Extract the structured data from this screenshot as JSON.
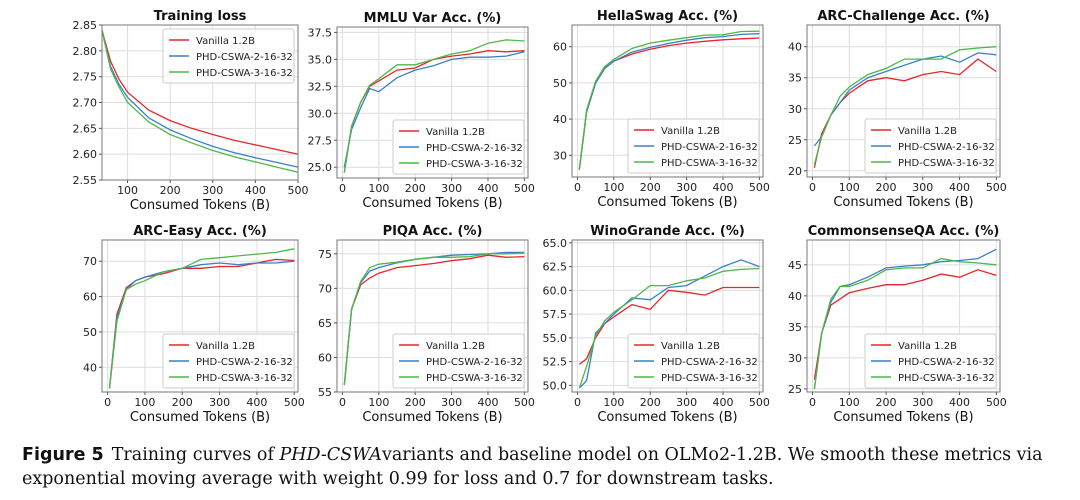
{
  "colors": {
    "Vanilla 1.2B": "#e8262a",
    "PHD-CSWA-2-16-32": "#3a80c8",
    "PHD-CSWA-3-16-32": "#4cb848"
  },
  "caption": {
    "label": "Figure 5",
    "pre": "Training curves of ",
    "italic": "PHD-CSWA",
    "post": "variants and baseline model on OLMo2-1.2B. We smooth these metrics via exponential moving average with weight 0.99 for loss and 0.7 for downstream tasks."
  },
  "chart_data": [
    {
      "type": "line",
      "title": "Training loss",
      "xlabel": "Consumed Tokens (B)",
      "xlim": [
        40,
        500
      ],
      "ylim": [
        2.55,
        2.85
      ],
      "xticks": [
        100,
        200,
        300,
        400,
        500
      ],
      "yticks": [
        2.55,
        2.6,
        2.65,
        2.7,
        2.75,
        2.8,
        2.85
      ],
      "ytick_labels": [
        "2.55",
        "2.60",
        "2.65",
        "2.70",
        "2.75",
        "2.80",
        "2.85"
      ],
      "legend": "top-right",
      "grid": true,
      "x": [
        40,
        60,
        80,
        100,
        150,
        200,
        250,
        300,
        350,
        400,
        450,
        500
      ],
      "series": [
        {
          "name": "Vanilla 1.2B",
          "values": [
            2.84,
            2.78,
            2.745,
            2.72,
            2.685,
            2.665,
            2.65,
            2.638,
            2.627,
            2.618,
            2.609,
            2.6
          ]
        },
        {
          "name": "PHD-CSWA-2-16-32",
          "values": [
            2.84,
            2.77,
            2.735,
            2.71,
            2.67,
            2.647,
            2.63,
            2.615,
            2.603,
            2.593,
            2.584,
            2.575
          ]
        },
        {
          "name": "PHD-CSWA-3-16-32",
          "values": [
            2.84,
            2.765,
            2.73,
            2.7,
            2.662,
            2.638,
            2.622,
            2.607,
            2.595,
            2.585,
            2.575,
            2.565
          ]
        }
      ]
    },
    {
      "type": "line",
      "title": "MMLU Var Acc. (%)",
      "xlabel": "Consumed Tokens (B)",
      "xlim": [
        -15,
        510
      ],
      "ylim": [
        24,
        38
      ],
      "xticks": [
        0,
        100,
        200,
        300,
        400,
        500
      ],
      "yticks": [
        25,
        27.5,
        30,
        32.5,
        35,
        37.5
      ],
      "ytick_labels": [
        "25.0",
        "27.5",
        "30.0",
        "32.5",
        "35.0",
        "37.5"
      ],
      "legend": "bottom-right",
      "grid": true,
      "x": [
        5,
        25,
        50,
        75,
        100,
        150,
        200,
        250,
        300,
        350,
        400,
        450,
        500
      ],
      "series": [
        {
          "name": "Vanilla 1.2B",
          "values": [
            24.5,
            28.8,
            31,
            32.5,
            33,
            34,
            34.2,
            35,
            35.3,
            35.5,
            35.8,
            35.7,
            35.8
          ]
        },
        {
          "name": "PHD-CSWA-2-16-32",
          "values": [
            25,
            28.5,
            30.5,
            32.3,
            32,
            33.3,
            34,
            34.4,
            35,
            35.2,
            35.2,
            35.3,
            35.7
          ]
        },
        {
          "name": "PHD-CSWA-3-16-32",
          "values": [
            24.5,
            28.8,
            31,
            32.6,
            33.2,
            34.5,
            34.5,
            35,
            35.5,
            35.8,
            36.5,
            36.8,
            36.7
          ]
        }
      ]
    },
    {
      "type": "line",
      "title": "HellaSwag Acc. (%)",
      "xlabel": "Consumed Tokens (B)",
      "xlim": [
        -15,
        510
      ],
      "ylim": [
        24,
        66
      ],
      "xticks": [
        0,
        100,
        200,
        300,
        400,
        500
      ],
      "yticks": [
        30,
        40,
        50,
        60
      ],
      "ytick_labels": [
        "30",
        "40",
        "50",
        "60"
      ],
      "legend": "bottom-right",
      "grid": true,
      "x": [
        5,
        25,
        50,
        75,
        100,
        150,
        200,
        250,
        300,
        350,
        400,
        450,
        500
      ],
      "series": [
        {
          "name": "Vanilla 1.2B",
          "values": [
            26,
            42,
            50,
            54,
            56,
            58,
            59.3,
            60.3,
            61,
            61.5,
            61.9,
            62.2,
            62.4
          ]
        },
        {
          "name": "PHD-CSWA-2-16-32",
          "values": [
            26,
            42,
            50,
            54,
            56,
            58.5,
            59.8,
            60.9,
            61.8,
            62.5,
            62.8,
            63.4,
            63.6
          ]
        },
        {
          "name": "PHD-CSWA-3-16-32",
          "values": [
            26,
            42.5,
            50.5,
            54.5,
            56.5,
            59.5,
            61,
            61.8,
            62.5,
            63.2,
            63.3,
            64.2,
            64.3
          ]
        }
      ]
    },
    {
      "type": "line",
      "title": "ARC-Challenge Acc. (%)",
      "xlabel": "Consumed Tokens (B)",
      "xlim": [
        -15,
        510
      ],
      "ylim": [
        19,
        43.5
      ],
      "xticks": [
        0,
        100,
        200,
        300,
        400,
        500
      ],
      "yticks": [
        20,
        25,
        30,
        35,
        40
      ],
      "ytick_labels": [
        "20",
        "25",
        "30",
        "35",
        "40"
      ],
      "legend": "bottom-right",
      "grid": true,
      "x": [
        5,
        25,
        50,
        75,
        100,
        150,
        200,
        250,
        300,
        350,
        400,
        450,
        500
      ],
      "series": [
        {
          "name": "Vanilla 1.2B",
          "values": [
            20.5,
            26,
            29,
            31,
            32.5,
            34.5,
            35,
            34.5,
            35.5,
            36,
            35.5,
            38,
            36
          ]
        },
        {
          "name": "PHD-CSWA-2-16-32",
          "values": [
            24,
            25.5,
            29,
            31,
            33,
            35,
            36,
            37,
            38,
            38.5,
            37.5,
            39,
            38.7
          ]
        },
        {
          "name": "PHD-CSWA-3-16-32",
          "values": [
            21,
            25.5,
            29,
            32,
            33.5,
            35.5,
            36.5,
            38,
            38,
            38,
            39.5,
            39.8,
            40
          ]
        }
      ]
    },
    {
      "type": "line",
      "title": "ARC-Easy Acc. (%)",
      "xlabel": "Consumed Tokens (B)",
      "xlim": [
        -15,
        510
      ],
      "ylim": [
        33,
        76
      ],
      "xticks": [
        0,
        100,
        200,
        300,
        400,
        500
      ],
      "yticks": [
        40,
        50,
        60,
        70
      ],
      "ytick_labels": [
        "40",
        "50",
        "60",
        "70"
      ],
      "legend": "bottom-right",
      "grid": true,
      "x": [
        5,
        25,
        50,
        75,
        100,
        150,
        200,
        250,
        300,
        350,
        400,
        450,
        500
      ],
      "series": [
        {
          "name": "Vanilla 1.2B",
          "values": [
            34,
            55,
            62.5,
            64.5,
            65.5,
            66.5,
            68,
            68,
            68.5,
            68.5,
            69.5,
            70.5,
            70.2
          ]
        },
        {
          "name": "PHD-CSWA-2-16-32",
          "values": [
            34,
            54,
            62,
            64.5,
            65.5,
            67,
            68,
            69,
            69.5,
            69,
            69.5,
            69.5,
            70
          ]
        },
        {
          "name": "PHD-CSWA-3-16-32",
          "values": [
            34,
            53,
            62,
            63.5,
            64.5,
            67,
            68,
            70.5,
            71,
            71.5,
            72,
            72.5,
            73.5
          ]
        }
      ]
    },
    {
      "type": "line",
      "title": "PIQA Acc. (%)",
      "xlabel": "Consumed Tokens (B)",
      "xlim": [
        -15,
        510
      ],
      "ylim": [
        55,
        77
      ],
      "xticks": [
        0,
        100,
        200,
        300,
        400,
        500
      ],
      "yticks": [
        55,
        60,
        65,
        70,
        75
      ],
      "ytick_labels": [
        "55",
        "60",
        "65",
        "70",
        "75"
      ],
      "legend": "bottom-right",
      "grid": true,
      "x": [
        5,
        25,
        50,
        75,
        100,
        150,
        200,
        250,
        300,
        350,
        400,
        450,
        500
      ],
      "series": [
        {
          "name": "Vanilla 1.2B",
          "values": [
            56,
            67,
            70.5,
            71.5,
            72.2,
            73,
            73.3,
            73.6,
            74,
            74.3,
            74.8,
            74.5,
            74.6
          ]
        },
        {
          "name": "PHD-CSWA-2-16-32",
          "values": [
            56,
            67,
            70.8,
            72.5,
            73,
            73.7,
            74.2,
            74.5,
            74.8,
            74.9,
            75,
            75.2,
            75.2
          ]
        },
        {
          "name": "PHD-CSWA-3-16-32",
          "values": [
            56,
            67,
            71,
            73,
            73.5,
            73.8,
            74.2,
            74.5,
            74.5,
            74.6,
            75,
            75,
            75.1
          ]
        }
      ]
    },
    {
      "type": "line",
      "title": "WinoGrande Acc. (%)",
      "xlabel": "Consumed Tokens (B)",
      "xlim": [
        -15,
        510
      ],
      "ylim": [
        49.3,
        65.3
      ],
      "xticks": [
        0,
        100,
        200,
        300,
        400,
        500
      ],
      "yticks": [
        50,
        52.5,
        55,
        57.5,
        60,
        62.5,
        65
      ],
      "ytick_labels": [
        "50.0",
        "52.5",
        "55.0",
        "57.5",
        "60.0",
        "62.5",
        "65.0"
      ],
      "legend": "bottom-right",
      "grid": true,
      "x": [
        5,
        25,
        50,
        75,
        100,
        150,
        200,
        250,
        300,
        350,
        400,
        450,
        500
      ],
      "series": [
        {
          "name": "Vanilla 1.2B",
          "values": [
            52.2,
            52.8,
            55,
            56.5,
            57.2,
            58.5,
            58,
            60,
            59.8,
            59.5,
            60.3,
            60.3,
            60.3
          ]
        },
        {
          "name": "PHD-CSWA-2-16-32",
          "values": [
            49.7,
            50.5,
            55.5,
            56.5,
            57.5,
            59.2,
            59,
            60.3,
            60.5,
            61.5,
            62.5,
            63.2,
            62.5
          ]
        },
        {
          "name": "PHD-CSWA-3-16-32",
          "values": [
            49.7,
            52,
            55.2,
            56.8,
            57.7,
            59,
            60.5,
            60.5,
            61,
            61.3,
            62,
            62.2,
            62.3
          ]
        }
      ]
    },
    {
      "type": "line",
      "title": "CommonsenseQA Acc. (%)",
      "xlabel": "Consumed Tokens (B)",
      "xlim": [
        -15,
        510
      ],
      "ylim": [
        24.5,
        49
      ],
      "xticks": [
        0,
        100,
        200,
        300,
        400,
        500
      ],
      "yticks": [
        25,
        30,
        35,
        40,
        45
      ],
      "ytick_labels": [
        "25",
        "30",
        "35",
        "40",
        "45"
      ],
      "legend": "bottom-right",
      "grid": true,
      "x": [
        5,
        25,
        50,
        75,
        100,
        150,
        200,
        250,
        300,
        350,
        400,
        450,
        500
      ],
      "series": [
        {
          "name": "Vanilla 1.2B",
          "values": [
            26.5,
            34,
            38.5,
            39.5,
            40.5,
            41.2,
            41.8,
            41.8,
            42.5,
            43.5,
            43,
            44.2,
            43.3
          ]
        },
        {
          "name": "PHD-CSWA-2-16-32",
          "values": [
            25,
            34,
            39,
            41.5,
            41.8,
            43,
            44.5,
            44.8,
            45,
            45.5,
            45.7,
            46,
            47.5
          ]
        },
        {
          "name": "PHD-CSWA-3-16-32",
          "values": [
            25,
            34,
            39.5,
            41.5,
            41.5,
            42.5,
            44.2,
            44.5,
            44.5,
            46,
            45.5,
            45.3,
            45
          ]
        }
      ]
    }
  ]
}
